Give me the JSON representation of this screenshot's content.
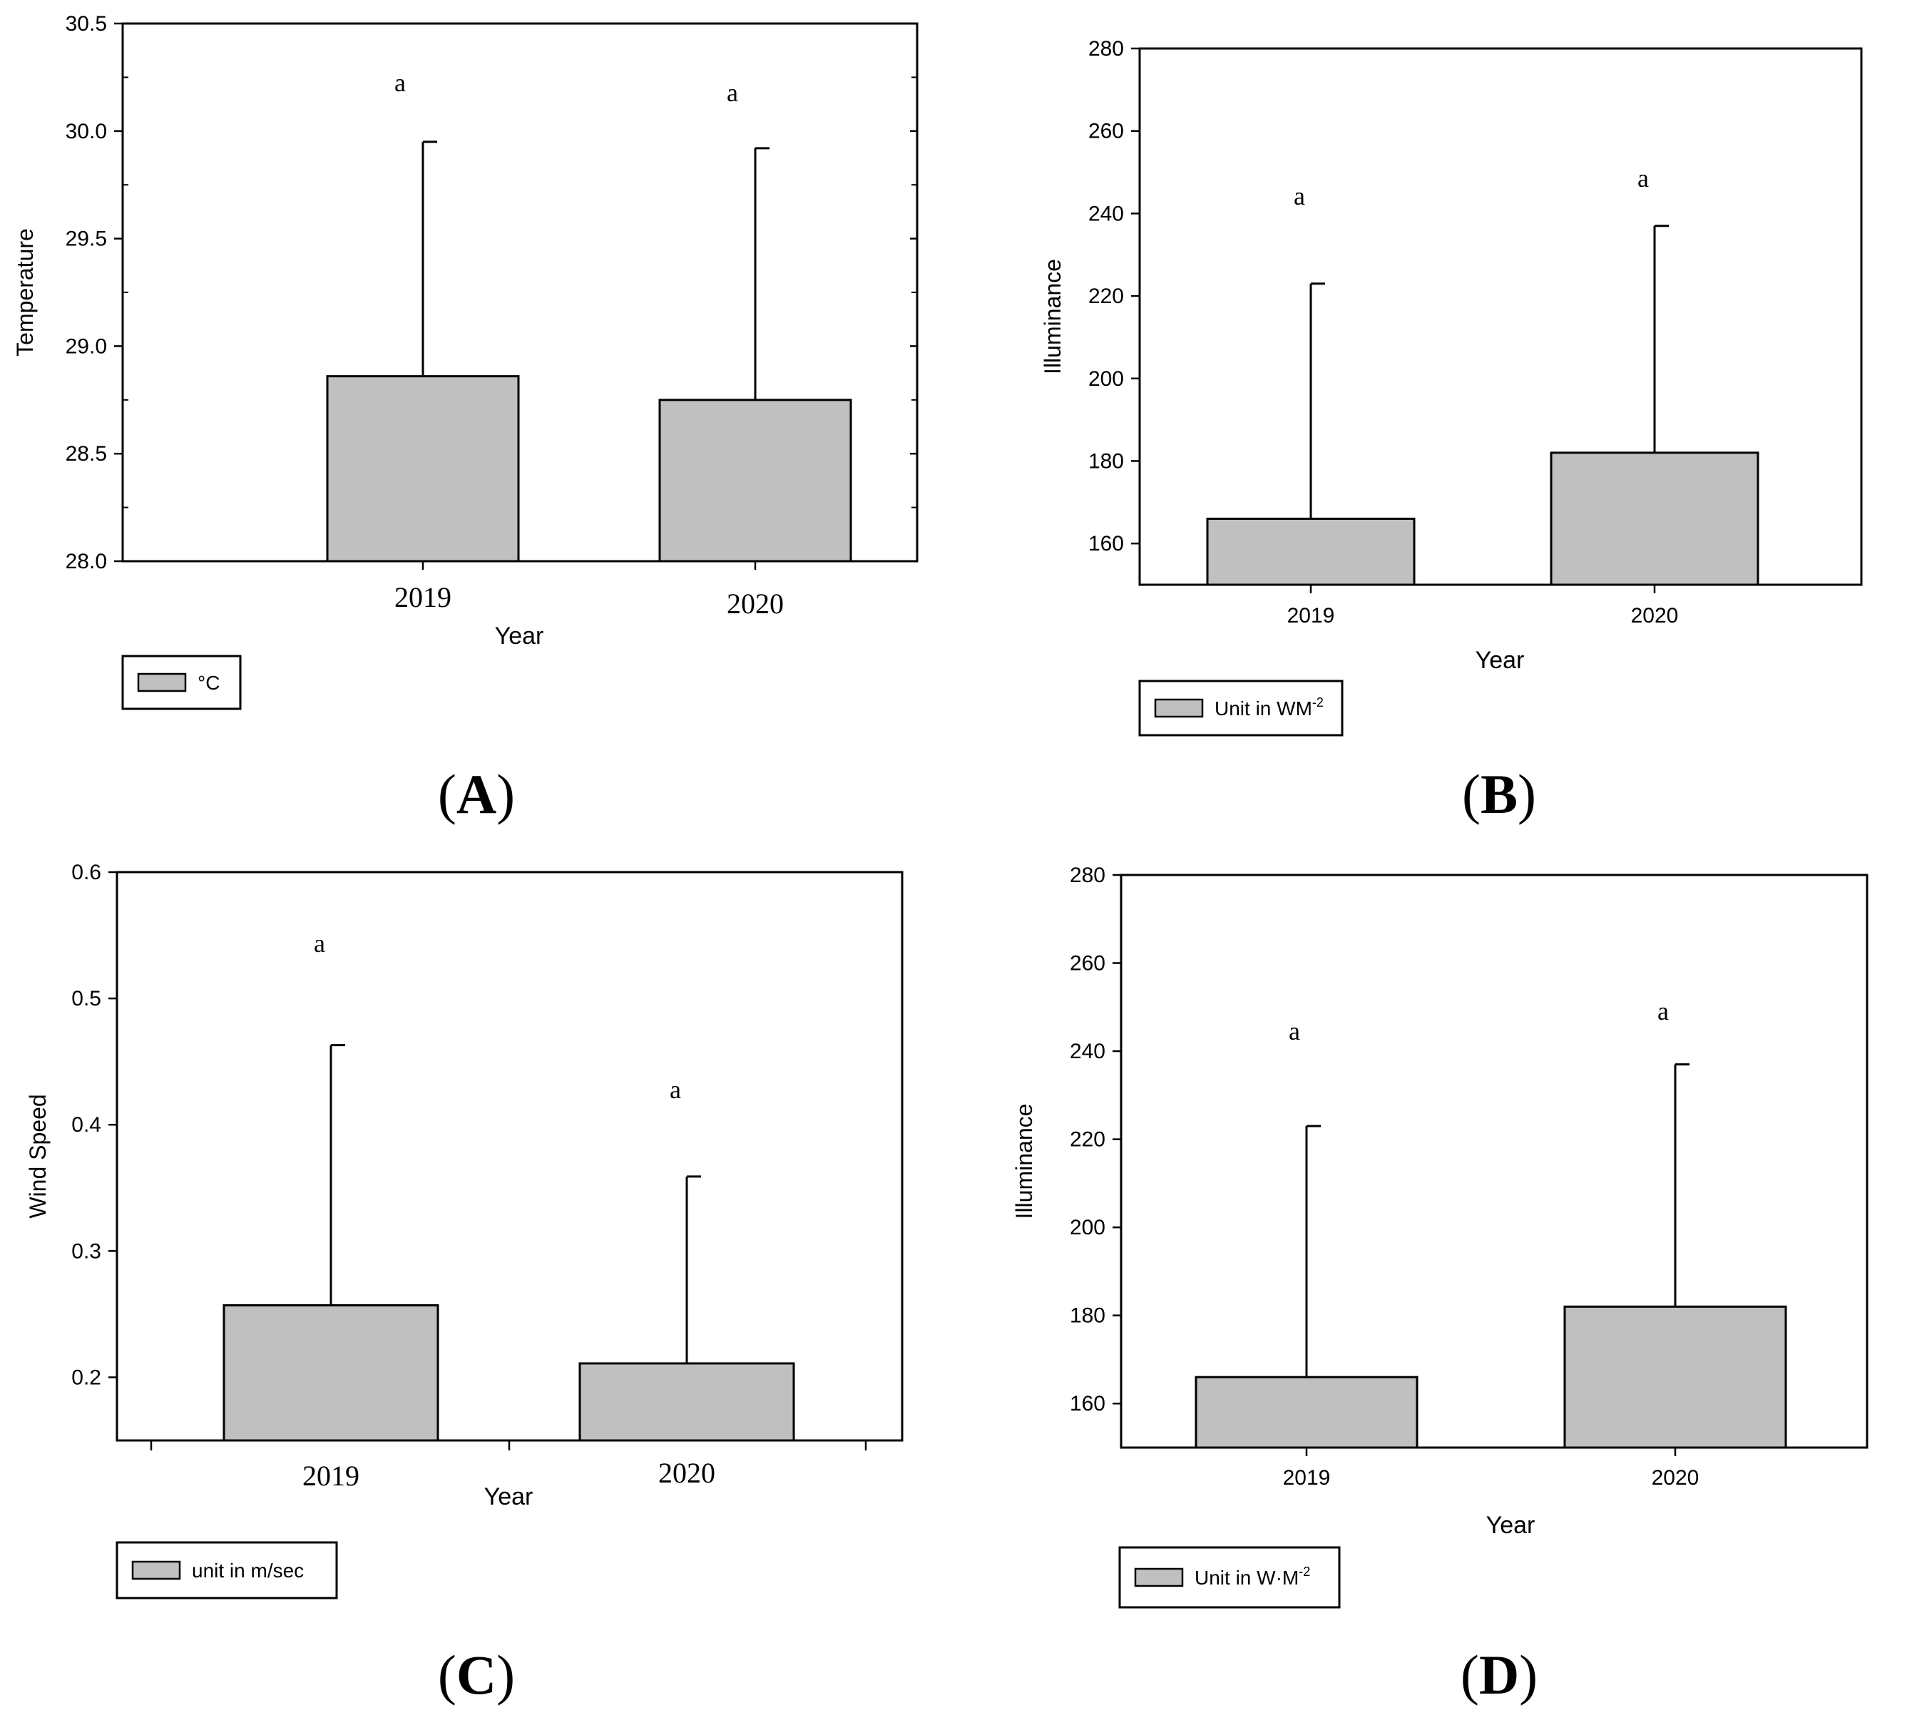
{
  "chart_data": [
    {
      "id": "A",
      "type": "bar",
      "panel_label": "A",
      "categories": [
        "2019",
        "2020"
      ],
      "values": [
        28.86,
        28.75
      ],
      "error_upper": [
        29.95,
        29.92
      ],
      "significance_letters": [
        "a",
        "a"
      ],
      "ylim": [
        28.0,
        30.5
      ],
      "yticks": [
        "28.0",
        "28.5",
        "29.0",
        "29.5",
        "30.0",
        "30.5"
      ],
      "xlabel": "Year",
      "ylabel": "Temperature",
      "legend_label": "°C",
      "bar_color": "#c0c0c0",
      "grid": false
    },
    {
      "id": "B",
      "type": "bar",
      "panel_label": "B",
      "categories": [
        "2019",
        "2020"
      ],
      "values": [
        166,
        182
      ],
      "error_upper": [
        223,
        237
      ],
      "significance_letters": [
        "a",
        "a"
      ],
      "ylim": [
        150,
        280
      ],
      "yticks": [
        "160",
        "180",
        "200",
        "220",
        "240",
        "260",
        "280"
      ],
      "xlabel": "Year",
      "ylabel": "Illuminance",
      "legend_label": "Unit in WM",
      "legend_superscript": "-2",
      "bar_color": "#c0c0c0",
      "grid": false
    },
    {
      "id": "C",
      "type": "bar",
      "panel_label": "C",
      "categories": [
        "2019",
        "2020"
      ],
      "values": [
        0.257,
        0.211
      ],
      "error_upper": [
        0.463,
        0.359
      ],
      "significance_letters": [
        "a",
        "a"
      ],
      "ylim": [
        0.15,
        0.6
      ],
      "yticks": [
        "0.2",
        "0.3",
        "0.4",
        "0.5",
        "0.6"
      ],
      "xlabel": "Year",
      "ylabel": "Wind Speed",
      "legend_label": "unit in m/sec",
      "bar_color": "#c0c0c0",
      "grid": false
    },
    {
      "id": "D",
      "type": "bar",
      "panel_label": "D",
      "categories": [
        "2019",
        "2020"
      ],
      "values": [
        166,
        182
      ],
      "error_upper": [
        223,
        237
      ],
      "significance_letters": [
        "a",
        "a"
      ],
      "ylim": [
        150,
        280
      ],
      "yticks": [
        "160",
        "180",
        "200",
        "220",
        "240",
        "260",
        "280"
      ],
      "xlabel": "Year",
      "ylabel": "Illuminance",
      "legend_label": "Unit in W·M",
      "legend_superscript": "-2",
      "bar_color": "#c0c0c0",
      "grid": false
    }
  ]
}
